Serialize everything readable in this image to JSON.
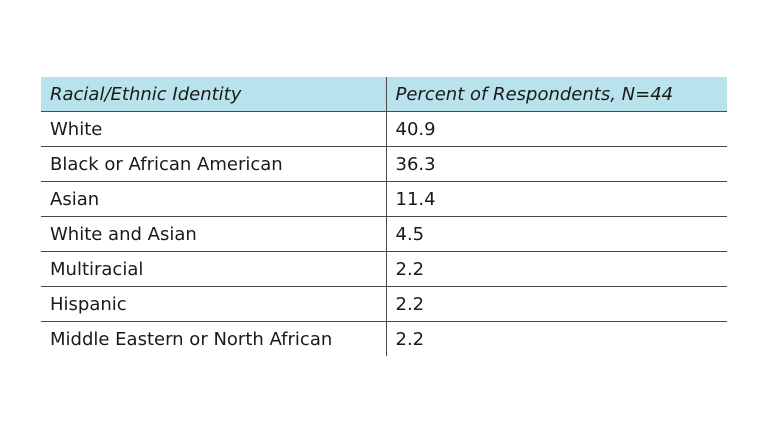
{
  "table": {
    "headers": [
      "Racial/Ethnic Identity",
      "Percent of Respondents, N=44"
    ],
    "rows": [
      [
        "White",
        "40.9"
      ],
      [
        "Black or African American",
        "36.3"
      ],
      [
        "Asian",
        "11.4"
      ],
      [
        "White and Asian",
        "4.5"
      ],
      [
        "Multiracial",
        "2.2"
      ],
      [
        "Hispanic",
        "2.2"
      ],
      [
        "Middle Eastern or North African",
        "2.2"
      ]
    ]
  },
  "colors": {
    "header_background": "#b8e3ec",
    "rule": "#4a4a4a",
    "text": "#1a1a1a"
  }
}
